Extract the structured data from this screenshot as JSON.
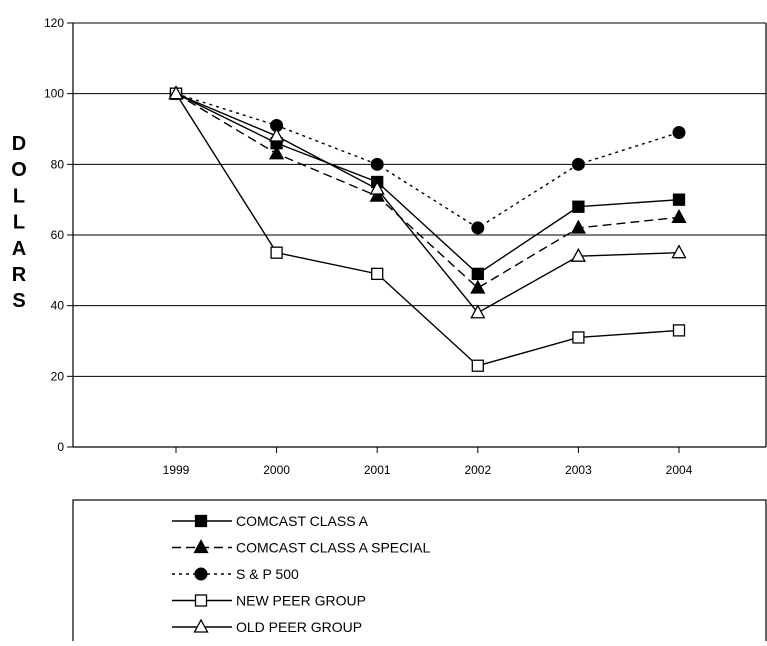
{
  "chart_data": {
    "type": "line",
    "title": "",
    "xlabel": "",
    "ylabel": "DOLLARS",
    "x": [
      "1999",
      "2000",
      "2001",
      "2002",
      "2003",
      "2004"
    ],
    "ylim": [
      0,
      120
    ],
    "yticks": [
      0,
      20,
      40,
      60,
      80,
      100,
      120
    ],
    "grid": "horizontal",
    "legend": "bottom",
    "series": [
      {
        "name": "COMCAST CLASS A",
        "values": [
          100,
          86,
          75,
          49,
          68,
          70
        ],
        "line": "solid",
        "marker": "filled-square",
        "color": "#000000"
      },
      {
        "name": "COMCAST CLASS A SPECIAL",
        "values": [
          100,
          83,
          71,
          45,
          62,
          65
        ],
        "line": "dashed",
        "marker": "filled-triangle",
        "color": "#000000"
      },
      {
        "name": "S & P 500",
        "values": [
          100,
          91,
          80,
          62,
          80,
          89
        ],
        "line": "dotted",
        "marker": "filled-circle",
        "color": "#000000"
      },
      {
        "name": "NEW PEER GROUP",
        "values": [
          100,
          55,
          49,
          23,
          31,
          33
        ],
        "line": "solid",
        "marker": "open-square",
        "color": "#000000"
      },
      {
        "name": "OLD PEER GROUP",
        "values": [
          100,
          88,
          73,
          38,
          54,
          55
        ],
        "line": "solid",
        "marker": "open-triangle",
        "color": "#000000"
      }
    ]
  }
}
